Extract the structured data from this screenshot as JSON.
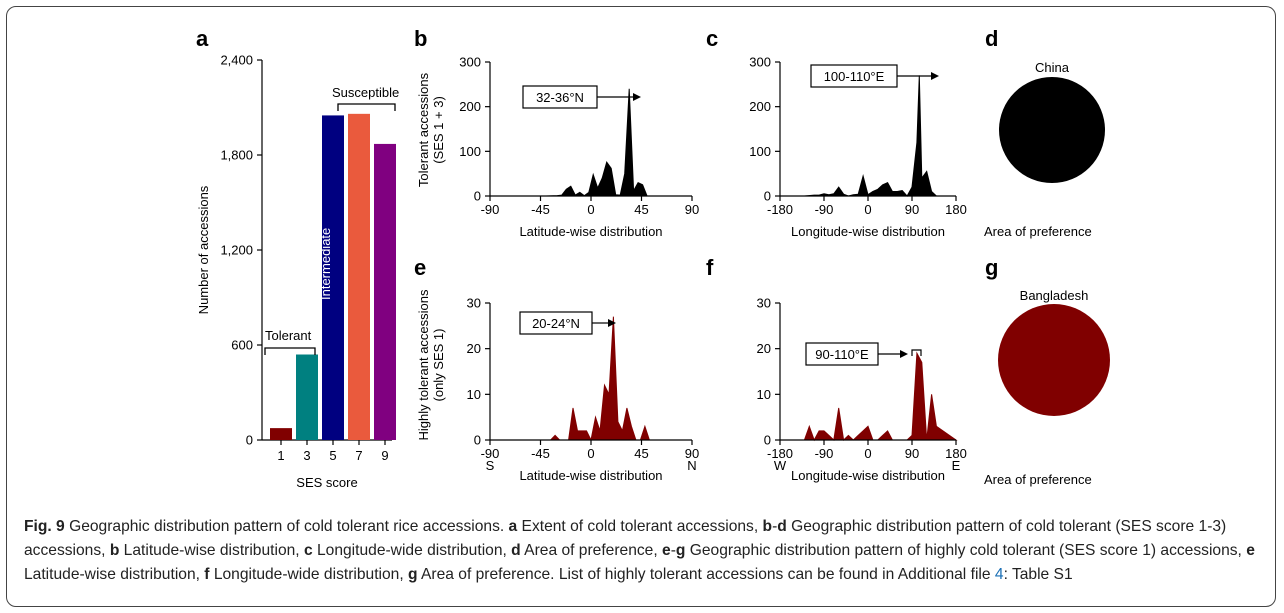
{
  "colors": {
    "black": "#000000",
    "maroon": "#800000",
    "bar_1": "#800000",
    "bar_3": "#008080",
    "bar_5": "#000080",
    "bar_7": "#ea5a3d",
    "bar_9": "#800080"
  },
  "panels": {
    "a": "a",
    "b": "b",
    "c": "c",
    "d": "d",
    "e": "e",
    "f": "f",
    "g": "g"
  },
  "chart_data": [
    {
      "panel": "a",
      "type": "bar",
      "categories": [
        "1",
        "3",
        "5",
        "7",
        "9"
      ],
      "values": [
        75,
        540,
        2050,
        2060,
        1870
      ],
      "colors": [
        "#800000",
        "#008080",
        "#000080",
        "#ea5a3d",
        "#800080"
      ],
      "xlabel": "SES score",
      "ylabel": "Number of accessions",
      "ylim": [
        0,
        2400
      ],
      "yticks": [
        "0",
        "600",
        "1,200",
        "1,800",
        "2,400"
      ],
      "annotations": {
        "tolerant": "Tolerant",
        "intermediate": "Intermediate",
        "susceptible": "Susceptible"
      }
    },
    {
      "panel": "b",
      "type": "area",
      "color": "#000000",
      "xlabel": "Latitude-wise distribution",
      "ylabel_lines": [
        "Tolerant accessions",
        "(SES 1 + 3)"
      ],
      "xlim": [
        -90,
        90
      ],
      "ylim": [
        0,
        300
      ],
      "xticks": [
        "-90",
        "-45",
        "0",
        "45",
        "90"
      ],
      "yticks": [
        "0",
        "100",
        "200",
        "300"
      ],
      "x": [
        -90,
        -40,
        -30,
        -26,
        -22,
        -18,
        -14,
        -10,
        -6,
        -2,
        2,
        6,
        10,
        14,
        18,
        22,
        26,
        30,
        34,
        38,
        42,
        46,
        50,
        90
      ],
      "y": [
        0,
        0,
        1,
        2,
        15,
        22,
        2,
        8,
        1,
        8,
        48,
        18,
        40,
        76,
        62,
        3,
        2,
        50,
        240,
        12,
        30,
        25,
        0,
        0
      ],
      "annotation": "32-36°N"
    },
    {
      "panel": "c",
      "type": "area",
      "color": "#000000",
      "xlabel": "Longitude-wise distribution",
      "xlim": [
        -180,
        180
      ],
      "ylim": [
        0,
        300
      ],
      "xticks": [
        "-180",
        "-90",
        "0",
        "90",
        "180"
      ],
      "yticks": [
        "0",
        "100",
        "200",
        "300"
      ],
      "x": [
        -180,
        -130,
        -110,
        -100,
        -90,
        -80,
        -70,
        -60,
        -50,
        -40,
        -30,
        -20,
        -10,
        0,
        10,
        20,
        30,
        40,
        50,
        60,
        70,
        80,
        90,
        100,
        105,
        110,
        120,
        130,
        140,
        180
      ],
      "y": [
        0,
        0,
        2,
        2,
        5,
        3,
        5,
        20,
        4,
        0,
        3,
        4,
        45,
        3,
        10,
        15,
        25,
        30,
        10,
        10,
        12,
        0,
        20,
        120,
        270,
        40,
        55,
        10,
        0,
        0
      ],
      "annotation": "100-110°E"
    },
    {
      "panel": "e",
      "type": "area",
      "color": "#800000",
      "xlabel": "Latitude-wise distribution",
      "ylabel_lines": [
        "Highly tolerant accessions",
        "(only SES 1)"
      ],
      "xlim": [
        -90,
        90
      ],
      "ylim": [
        0,
        30
      ],
      "xticks": [
        "-90",
        "-45",
        "0",
        "45",
        "90"
      ],
      "yticks": [
        "0",
        "10",
        "20",
        "30"
      ],
      "x": [
        -90,
        -36,
        -32,
        -28,
        -24,
        -20,
        -16,
        -12,
        -8,
        -4,
        0,
        4,
        8,
        12,
        16,
        20,
        24,
        28,
        32,
        36,
        40,
        44,
        48,
        52,
        90
      ],
      "y": [
        0,
        0,
        1,
        0,
        0,
        0,
        7,
        2,
        2,
        2,
        0,
        5,
        2,
        12,
        10,
        27,
        4,
        2,
        7,
        3,
        0,
        0,
        3,
        0,
        0
      ],
      "annotation": "20-24°N",
      "xtick_sublabels": [
        "S",
        "N"
      ]
    },
    {
      "panel": "f",
      "type": "area",
      "color": "#800000",
      "xlabel": "Longitude-wise distribution",
      "xlim": [
        -180,
        180
      ],
      "ylim": [
        0,
        30
      ],
      "xticks": [
        "-180",
        "-90",
        "0",
        "90",
        "180"
      ],
      "yticks": [
        "0",
        "10",
        "20",
        "30"
      ],
      "x": [
        -180,
        -130,
        -120,
        -110,
        -100,
        -90,
        -80,
        -70,
        -60,
        -50,
        -40,
        -30,
        -20,
        -10,
        0,
        10,
        20,
        30,
        40,
        50,
        60,
        70,
        80,
        90,
        100,
        110,
        120,
        130,
        140,
        180
      ],
      "y": [
        0,
        0,
        3,
        0,
        2,
        2,
        1,
        0,
        7,
        0,
        1,
        0,
        1,
        2,
        3,
        0,
        0,
        1,
        2,
        0,
        0,
        0,
        0,
        1,
        19,
        17,
        0,
        10,
        3,
        0
      ],
      "annotation": "90-110°E",
      "xtick_sublabels": [
        "W",
        "E"
      ]
    }
  ],
  "pies": {
    "d": {
      "title": "China",
      "color": "#000000",
      "label": "Area of preference"
    },
    "g": {
      "title": "Bangladesh",
      "color": "#800000",
      "label": "Area of preference"
    }
  },
  "caption": {
    "fig": "Fig. 9",
    "t1": " Geographic distribution pattern of cold tolerant rice accessions. ",
    "a": "a",
    "t2": " Extent of cold tolerant accessions, ",
    "b1": "b",
    "t3": "-",
    "d1": "d",
    "t4": " Geographic distribution pattern of cold tolerant (SES score 1-3) accessions, ",
    "b2": "b",
    "t5": " Latitude-wise distribution, ",
    "c": "c",
    "t6": " Longitude-wide distribution, ",
    "d2": "d",
    "t7": " Area of preference, ",
    "e1": "e",
    "t8": "-",
    "g1": "g",
    "t9": " Geographic distribution pattern of highly cold tolerant (SES score 1) accessions, ",
    "e2": "e",
    "t10": " Latitude-wise distribution, ",
    "f": "f",
    "t11": " Longitude-wide distribution, ",
    "g2": "g",
    "t12": " Area of preference. List of highly tolerant accessions can be found in Additional file ",
    "file": "4",
    "t13": ": Table S1"
  }
}
